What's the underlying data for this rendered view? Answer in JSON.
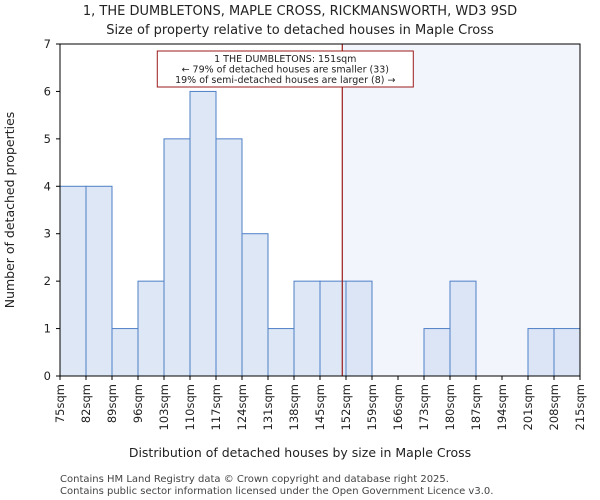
{
  "chart_data": {
    "type": "bar",
    "title": "1, THE DUMBLETONS, MAPLE CROSS, RICKMANSWORTH, WD3 9SD",
    "subtitle": "Size of property relative to detached houses in Maple Cross",
    "xlabel": "Distribution of detached houses by size in Maple Cross",
    "ylabel": "Number of detached properties",
    "bin_edges_sqm": [
      75,
      82,
      89,
      96,
      103,
      110,
      117,
      124,
      131,
      138,
      145,
      152,
      159,
      166,
      173,
      180,
      187,
      194,
      201,
      208,
      215
    ],
    "tick_labels": [
      "75sqm",
      "82sqm",
      "89sqm",
      "96sqm",
      "103sqm",
      "110sqm",
      "117sqm",
      "124sqm",
      "131sqm",
      "138sqm",
      "145sqm",
      "152sqm",
      "159sqm",
      "166sqm",
      "173sqm",
      "180sqm",
      "187sqm",
      "194sqm",
      "201sqm",
      "208sqm",
      "215sqm"
    ],
    "values": [
      4,
      4,
      1,
      2,
      5,
      6,
      5,
      3,
      1,
      2,
      2,
      2,
      0,
      0,
      1,
      2,
      0,
      0,
      1,
      1
    ],
    "ylim": [
      0,
      7
    ],
    "yticks": [
      0,
      1,
      2,
      3,
      4,
      5,
      6,
      7
    ],
    "marker_value_sqm": 151,
    "annotation": {
      "line1": "1 THE DUMBLETONS: 151sqm",
      "line2": "← 79% of detached houses are smaller (33)",
      "line3": "19% of semi-detached houses are larger (8) →"
    },
    "colors": {
      "bar_fill_left": "#dde7f5",
      "bar_fill_right": "#dce5f5",
      "bar_stroke": "#4f7fc7",
      "shade_right": "#f3f5fc",
      "marker": "#9b1b1b"
    }
  },
  "footer": {
    "line1": "Contains HM Land Registry data © Crown copyright and database right 2025.",
    "line2": "Contains public sector information licensed under the Open Government Licence v3.0."
  }
}
